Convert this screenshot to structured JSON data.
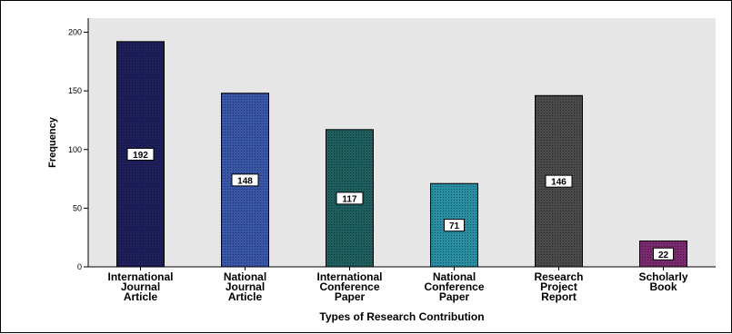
{
  "chart_data": {
    "type": "bar",
    "xlabel": "Types of Research Contribution",
    "ylabel": "Frequency",
    "ylim": [
      0,
      212
    ],
    "yticks": [
      0,
      50,
      100,
      150,
      200
    ],
    "grid": false,
    "categories": [
      [
        "International",
        "Journal",
        "Article"
      ],
      [
        "National",
        "Journal",
        "Article"
      ],
      [
        "International",
        "Conference",
        "Paper"
      ],
      [
        "National",
        "Conference",
        "Paper"
      ],
      [
        "Research",
        "Project",
        "Report"
      ],
      [
        "Scholarly",
        "Book"
      ]
    ],
    "values": [
      192,
      148,
      117,
      71,
      146,
      22
    ],
    "colors": [
      "#1e1e5a",
      "#3a56a8",
      "#1f5e5e",
      "#2a8ea3",
      "#4a4a4a",
      "#7a2a6e"
    ],
    "plot_background": "#e6e6e6"
  }
}
